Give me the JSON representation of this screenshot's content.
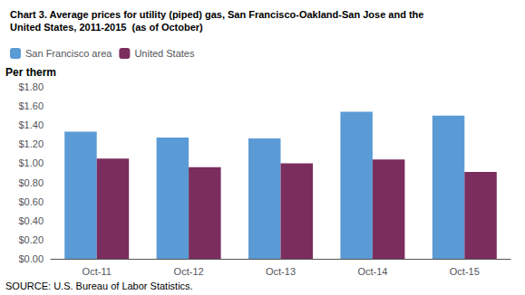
{
  "chart_data": {
    "type": "bar",
    "title": "Chart 3. Average prices for utility (piped) gas, San Francisco-Oakland-San Jose and the\nUnited States, 2011-2015  (as of October)",
    "ylabel": "Per therm",
    "annotations": [
      "SOURCE: U.S. Bureau of Labor Statistics."
    ],
    "categories": [
      "Oct-11",
      "Oct-12",
      "Oct-13",
      "Oct-14",
      "Oct-15"
    ],
    "series": [
      {
        "name": "San Francisco area",
        "color": "#5B9BD5",
        "values": [
          1.33,
          1.27,
          1.26,
          1.54,
          1.5
        ]
      },
      {
        "name": "United States",
        "color": "#7B2D5E",
        "values": [
          1.05,
          0.96,
          1.0,
          1.04,
          0.91
        ]
      }
    ],
    "ylim": [
      0,
      1.8
    ],
    "yticks": [
      {
        "value": 0.0,
        "label": "$0.00"
      },
      {
        "value": 0.2,
        "label": "$0.20"
      },
      {
        "value": 0.4,
        "label": "$0.40"
      },
      {
        "value": 0.6,
        "label": "$0.60"
      },
      {
        "value": 0.8,
        "label": "$0.80"
      },
      {
        "value": 1.0,
        "label": "$1.00"
      },
      {
        "value": 1.2,
        "label": "$1.20"
      },
      {
        "value": 1.4,
        "label": "$1.40"
      },
      {
        "value": 1.6,
        "label": "$1.60"
      },
      {
        "value": 1.8,
        "label": "$1.80"
      }
    ],
    "grid": false,
    "legend": "upper left"
  }
}
